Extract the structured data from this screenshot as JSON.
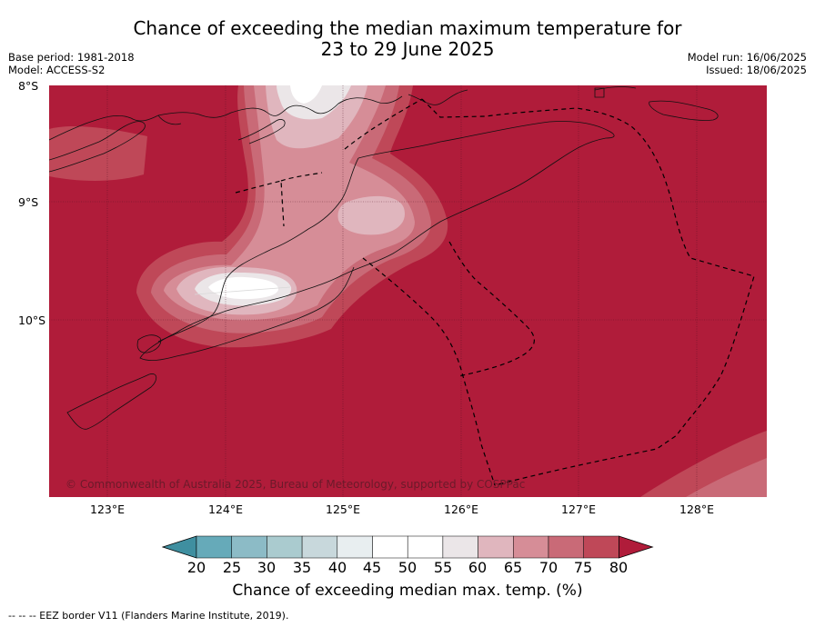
{
  "title_line1": "Chance of exceeding the median maximum temperature for",
  "title_line2": "23 to 29 June 2025",
  "meta_left": {
    "base_period": "Base period: 1981-2018",
    "model": "Model: ACCESS-S2"
  },
  "meta_right": {
    "model_run": "Model run: 16/06/2025",
    "issued": "Issued: 18/06/2025"
  },
  "lat_labels": [
    "8°S",
    "9°S",
    "10°S"
  ],
  "lon_labels": [
    "123°E",
    "124°E",
    "125°E",
    "126°E",
    "127°E",
    "128°E"
  ],
  "copyright": "© Commonwealth of Australia 2025, Bureau of Meteorology, supported by COSPPac",
  "colorbar": {
    "ticks": [
      "20",
      "25",
      "30",
      "35",
      "40",
      "45",
      "50",
      "55",
      "60",
      "65",
      "70",
      "75",
      "80"
    ],
    "colors": [
      "#3f8fa0",
      "#66aab9",
      "#8cbbc6",
      "#aacbcf",
      "#c8d8dc",
      "#e8eef0",
      "#ffffff",
      "#ffffff",
      "#ebe6e8",
      "#e0b6be",
      "#d68d97",
      "#c96a77",
      "#bf4858",
      "#b01c3a"
    ],
    "label": "Chance of exceeding median max. temp. (%)"
  },
  "footer": "--  --  -- EEZ border V11 (Flanders Marine Institute, 2019)."
}
